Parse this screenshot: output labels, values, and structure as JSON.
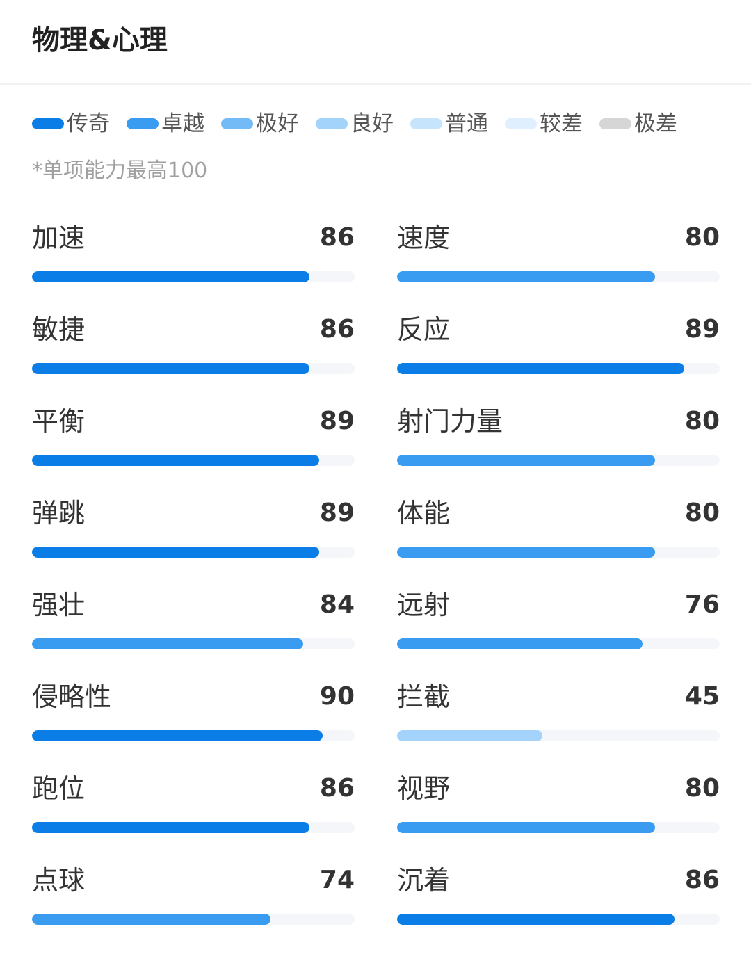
{
  "header": {
    "title": "物理&心理"
  },
  "legend": [
    {
      "label": "传奇",
      "color": "#0a7ee6"
    },
    {
      "label": "卓越",
      "color": "#3a9cf0"
    },
    {
      "label": "极好",
      "color": "#72bbf6"
    },
    {
      "label": "良好",
      "color": "#a3d2fb"
    },
    {
      "label": "普通",
      "color": "#c7e4fd"
    },
    {
      "label": "较差",
      "color": "#dfeffd"
    },
    {
      "label": "极差",
      "color": "#d6d6d6"
    }
  ],
  "note": "*单项能力最高100",
  "max_value": 100,
  "stats": [
    {
      "label": "加速",
      "value": 86,
      "tier": "传奇",
      "color": "#0a7ee6"
    },
    {
      "label": "速度",
      "value": 80,
      "tier": "卓越",
      "color": "#3a9cf0"
    },
    {
      "label": "敏捷",
      "value": 86,
      "tier": "传奇",
      "color": "#0a7ee6"
    },
    {
      "label": "反应",
      "value": 89,
      "tier": "传奇",
      "color": "#0a7ee6"
    },
    {
      "label": "平衡",
      "value": 89,
      "tier": "传奇",
      "color": "#0a7ee6"
    },
    {
      "label": "射门力量",
      "value": 80,
      "tier": "卓越",
      "color": "#3a9cf0"
    },
    {
      "label": "弹跳",
      "value": 89,
      "tier": "传奇",
      "color": "#0a7ee6"
    },
    {
      "label": "体能",
      "value": 80,
      "tier": "卓越",
      "color": "#3a9cf0"
    },
    {
      "label": "强壮",
      "value": 84,
      "tier": "卓越",
      "color": "#3a9cf0"
    },
    {
      "label": "远射",
      "value": 76,
      "tier": "卓越",
      "color": "#3a9cf0"
    },
    {
      "label": "侵略性",
      "value": 90,
      "tier": "传奇",
      "color": "#0a7ee6"
    },
    {
      "label": "拦截",
      "value": 45,
      "tier": "良好",
      "color": "#a3d2fb"
    },
    {
      "label": "跑位",
      "value": 86,
      "tier": "传奇",
      "color": "#0a7ee6"
    },
    {
      "label": "视野",
      "value": 80,
      "tier": "卓越",
      "color": "#3a9cf0"
    },
    {
      "label": "点球",
      "value": 74,
      "tier": "卓越",
      "color": "#3a9cf0"
    },
    {
      "label": "沉着",
      "value": 86,
      "tier": "传奇",
      "color": "#0a7ee6"
    }
  ]
}
